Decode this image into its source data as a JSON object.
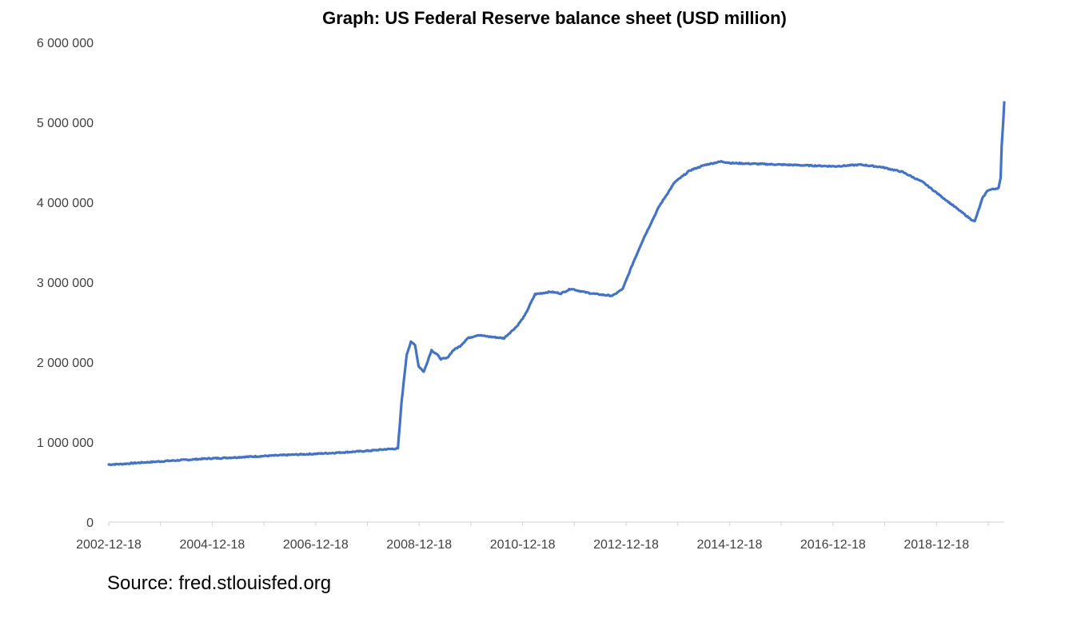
{
  "chart_data": {
    "type": "line",
    "title": "Graph: US Federal Reserve balance sheet (USD million)",
    "xlabel": "",
    "ylabel": "",
    "ylim": [
      0,
      6000000
    ],
    "y_ticks": [
      "0",
      "1 000 000",
      "2 000 000",
      "3 000 000",
      "4 000 000",
      "5 000 000",
      "6 000 000"
    ],
    "y_tick_values": [
      0,
      1000000,
      2000000,
      3000000,
      4000000,
      5000000,
      6000000
    ],
    "x_ticks": [
      "2002-12-18",
      "2004-12-18",
      "2006-12-18",
      "2008-12-18",
      "2010-12-18",
      "2012-12-18",
      "2014-12-18",
      "2016-12-18",
      "2018-12-18"
    ],
    "x_tick_years": [
      2002.96,
      2004.96,
      2006.96,
      2008.96,
      2010.96,
      2012.96,
      2014.96,
      2016.96,
      2018.96
    ],
    "xlim": [
      2002.96,
      2020.27
    ],
    "grid": false,
    "legend": "none",
    "series": [
      {
        "name": "US Federal Reserve balance sheet",
        "color": "#4472c4",
        "x": [
          2002.96,
          2003.2,
          2003.5,
          2003.8,
          2004.1,
          2004.5,
          2004.9,
          2005.3,
          2005.7,
          2006.1,
          2006.5,
          2006.9,
          2007.3,
          2007.7,
          2008.0,
          2008.3,
          2008.55,
          2008.62,
          2008.72,
          2008.8,
          2008.88,
          2008.95,
          2009.05,
          2009.2,
          2009.3,
          2009.38,
          2009.5,
          2009.62,
          2009.75,
          2009.9,
          2010.1,
          2010.3,
          2010.6,
          2010.85,
          2011.0,
          2011.2,
          2011.5,
          2011.7,
          2011.9,
          2012.0,
          2012.2,
          2012.4,
          2012.7,
          2012.9,
          2013.1,
          2013.3,
          2013.6,
          2013.9,
          2014.2,
          2014.5,
          2014.8,
          2015.0,
          2015.5,
          2016.0,
          2016.5,
          2017.0,
          2017.5,
          2017.9,
          2018.3,
          2018.7,
          2019.0,
          2019.3,
          2019.6,
          2019.7,
          2019.85,
          2019.95,
          2020.1,
          2020.16,
          2020.2,
          2020.22,
          2020.25,
          2020.27
        ],
        "values": [
          720000,
          725000,
          740000,
          752000,
          765000,
          780000,
          795000,
          806000,
          818000,
          830000,
          842000,
          852000,
          865000,
          880000,
          892000,
          910000,
          920000,
          1500000,
          2100000,
          2250000,
          2220000,
          1950000,
          1880000,
          2150000,
          2100000,
          2040000,
          2050000,
          2150000,
          2200000,
          2300000,
          2340000,
          2320000,
          2300000,
          2450000,
          2580000,
          2850000,
          2880000,
          2860000,
          2920000,
          2900000,
          2870000,
          2850000,
          2830000,
          2920000,
          3250000,
          3550000,
          3950000,
          4250000,
          4400000,
          4470000,
          4510000,
          4490000,
          4480000,
          4470000,
          4460000,
          4450000,
          4470000,
          4440000,
          4380000,
          4250000,
          4100000,
          3950000,
          3800000,
          3760000,
          4050000,
          4150000,
          4170000,
          4180000,
          4300000,
          4700000,
          5000000,
          5250000
        ]
      }
    ]
  },
  "source": "Source: fred.stlouisfed.org"
}
